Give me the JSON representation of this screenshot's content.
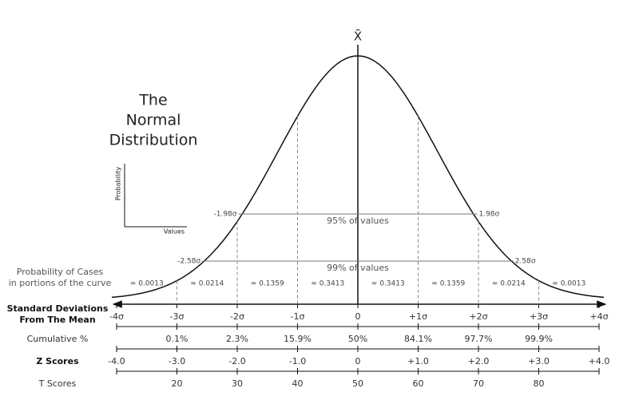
{
  "title": [
    "The",
    "Normal",
    "Distribution"
  ],
  "mean_label": "X̄",
  "axes_icon": {
    "y": "Probability",
    "x": "Values"
  },
  "intervals": [
    {
      "left": "-1.98σ",
      "right": "1.98σ",
      "label": "95% of values"
    },
    {
      "left": "-2.58σ",
      "right": "2.58σ",
      "label": "99% of values"
    }
  ],
  "portions": {
    "label": [
      "Probability of Cases",
      "in portions of the curve"
    ],
    "values": [
      "≈ 0.0013",
      "≈ 0.0214",
      "≈ 0.1359",
      "≈ 0.3413",
      "≈ 0.3413",
      "≈ 0.1359",
      "≈ 0.0214",
      "≈ 0.0013"
    ]
  },
  "rows": [
    {
      "label": [
        "Standard Deviations",
        "From The Mean"
      ],
      "ticks": [
        "-4σ",
        "-3σ",
        "-2σ",
        "-1σ",
        "0",
        "+1σ",
        "+2σ",
        "+3σ",
        "+4σ"
      ]
    },
    {
      "label": [
        "Cumulative %"
      ],
      "ticks": [
        "0.1%",
        "2.3%",
        "15.9%",
        "50%",
        "84.1%",
        "97.7%",
        "99.9%"
      ]
    },
    {
      "label": [
        "Z Scores"
      ],
      "ticks": [
        "-4.0",
        "-3.0",
        "-2.0",
        "-1.0",
        "0",
        "+1.0",
        "+2.0",
        "+3.0",
        "+4.0"
      ]
    },
    {
      "label": [
        "T Scores"
      ],
      "ticks": [
        "20",
        "30",
        "40",
        "50",
        "60",
        "70",
        "80"
      ]
    }
  ]
}
